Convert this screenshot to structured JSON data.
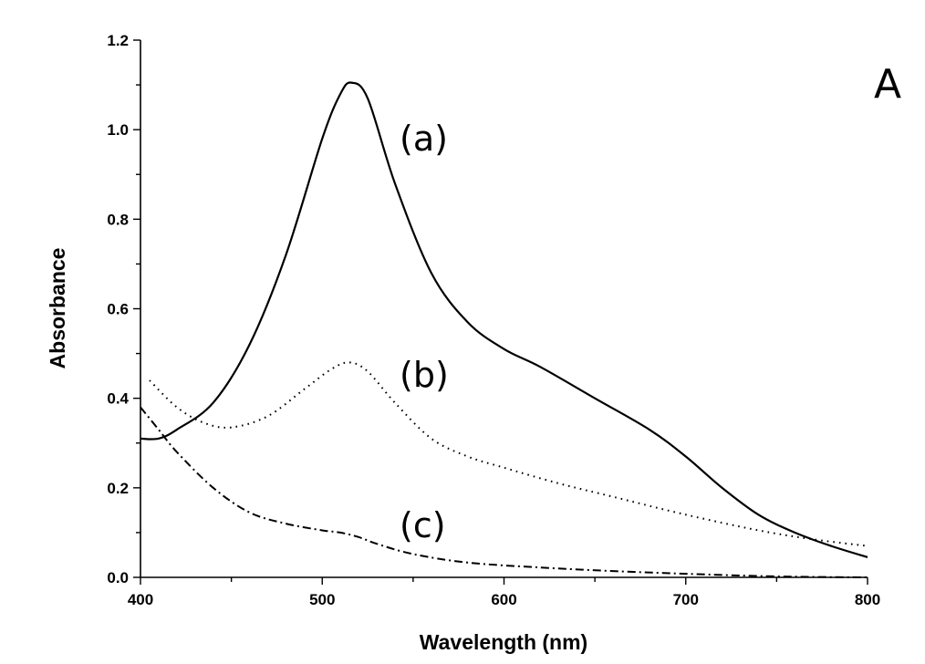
{
  "panel_label": "A",
  "chart_data": {
    "type": "line",
    "xlabel": "Wavelength (nm)",
    "ylabel": "Absorbance",
    "xlim": [
      400,
      800
    ],
    "ylim": [
      0,
      1.2
    ],
    "xticks": [
      "400",
      "500",
      "600",
      "700",
      "800"
    ],
    "yticks": [
      "0.0",
      "0.2",
      "0.4",
      "0.6",
      "0.8",
      "1.0",
      "1.2"
    ],
    "grid": false,
    "series": [
      {
        "name": "(a)",
        "style": "solid",
        "x": [
          400,
          410,
          420,
          440,
          460,
          480,
          500,
          510,
          516,
          525,
          540,
          560,
          580,
          600,
          620,
          650,
          680,
          700,
          720,
          740,
          760,
          780,
          800
        ],
        "y": [
          0.31,
          0.31,
          0.33,
          0.39,
          0.52,
          0.72,
          0.98,
          1.08,
          1.105,
          1.07,
          0.88,
          0.68,
          0.57,
          0.51,
          0.47,
          0.4,
          0.33,
          0.27,
          0.2,
          0.14,
          0.1,
          0.07,
          0.045
        ]
      },
      {
        "name": "(b)",
        "style": "dotted",
        "x": [
          405,
          420,
          435,
          450,
          470,
          490,
          505,
          515,
          525,
          540,
          560,
          580,
          600,
          630,
          660,
          700,
          740,
          770,
          800
        ],
        "y": [
          0.44,
          0.38,
          0.345,
          0.335,
          0.36,
          0.42,
          0.465,
          0.48,
          0.46,
          0.39,
          0.31,
          0.27,
          0.245,
          0.21,
          0.18,
          0.14,
          0.105,
          0.085,
          0.07
        ]
      },
      {
        "name": "(c)",
        "style": "dash-dot",
        "x": [
          400,
          410,
          420,
          440,
          460,
          480,
          500,
          510,
          520,
          530,
          550,
          580,
          620,
          660,
          700,
          740,
          770,
          800
        ],
        "y": [
          0.38,
          0.33,
          0.28,
          0.2,
          0.145,
          0.12,
          0.105,
          0.1,
          0.09,
          0.075,
          0.052,
          0.033,
          0.022,
          0.014,
          0.008,
          0.003,
          0.001,
          0.0
        ]
      }
    ]
  }
}
